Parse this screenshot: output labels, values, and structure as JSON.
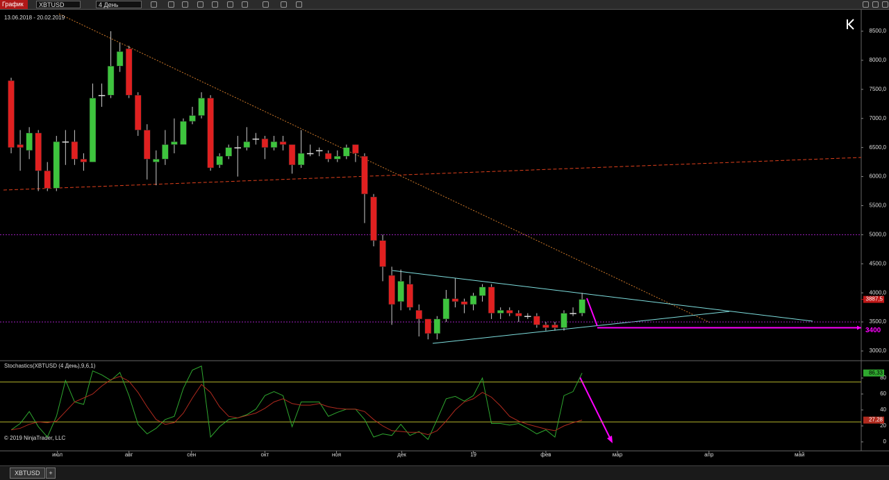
{
  "toolbar": {
    "label": "График",
    "instrument": "XBTUSD",
    "interval": "4 День"
  },
  "tabs": [
    "XBTUSD"
  ],
  "copyright": "© 2019 NinjaTrader, LLC",
  "chart_data": [
    {
      "type": "candlestick",
      "title": "13.06.2018 - 20.02.2019",
      "up_color": "#3ec43e",
      "down_color": "#e02020",
      "open": [
        7650,
        6550,
        6450,
        6750,
        6100,
        5800,
        6600,
        6600,
        6300,
        6250,
        7400,
        7400,
        7900,
        8200,
        7400,
        6800,
        6250,
        6300,
        6550,
        6550,
        6950,
        7050,
        7350,
        6200,
        6350,
        6500,
        6500,
        6650,
        6650,
        6500,
        6600,
        6550,
        6200,
        6400,
        6450,
        6400,
        6300,
        6350,
        6550,
        6350,
        5650,
        4900,
        4300,
        3850,
        4150,
        3700,
        3550,
        3300,
        3550,
        3900,
        3850,
        3800,
        3950,
        4100,
        3650,
        3700,
        3650,
        3600,
        3600,
        3450,
        3450,
        3400,
        3650,
        3650
      ],
      "high": [
        7700,
        6800,
        6850,
        6800,
        6250,
        6700,
        6800,
        6800,
        6400,
        7600,
        7600,
        8500,
        8300,
        8250,
        7450,
        6900,
        6450,
        6800,
        7000,
        7000,
        7200,
        7450,
        7400,
        6400,
        6550,
        6700,
        6850,
        6750,
        6700,
        6700,
        6700,
        6550,
        6800,
        6550,
        6500,
        6450,
        6450,
        6550,
        6550,
        6400,
        5700,
        5000,
        4450,
        4400,
        4300,
        3800,
        3550,
        3600,
        4050,
        4250,
        3900,
        4000,
        4150,
        4150,
        3750,
        3750,
        3700,
        3650,
        3650,
        3500,
        3500,
        3700,
        3750,
        4000
      ],
      "low": [
        6400,
        6100,
        6300,
        5750,
        5750,
        5750,
        6200,
        6200,
        6100,
        6250,
        7200,
        7350,
        7800,
        7350,
        6700,
        5950,
        5850,
        6200,
        6400,
        6550,
        6900,
        7000,
        6100,
        6150,
        6300,
        6000,
        6450,
        6550,
        6300,
        6450,
        6450,
        6050,
        6150,
        6350,
        6350,
        6250,
        6250,
        6300,
        6250,
        5200,
        4800,
        4200,
        3450,
        3700,
        3700,
        3250,
        3200,
        3200,
        3500,
        3750,
        3650,
        3700,
        3850,
        3550,
        3550,
        3600,
        3500,
        3550,
        3400,
        3350,
        3350,
        3350,
        3600,
        3600
      ],
      "close": [
        6500,
        6500,
        6750,
        6100,
        5800,
        6600,
        6600,
        6300,
        6250,
        7350,
        7400,
        7900,
        8150,
        7400,
        6800,
        6300,
        6300,
        6550,
        6600,
        6950,
        7050,
        7350,
        6150,
        6350,
        6500,
        6500,
        6600,
        6650,
        6500,
        6600,
        6550,
        6200,
        6400,
        6400,
        6450,
        6300,
        6350,
        6500,
        6400,
        5700,
        4900,
        4450,
        3800,
        4200,
        3750,
        3550,
        3300,
        3550,
        3900,
        3850,
        3800,
        3950,
        4100,
        3650,
        3700,
        3650,
        3600,
        3600,
        3450,
        3400,
        3400,
        3650,
        3650,
        3887.5
      ],
      "last_label": "3887,5",
      "last_color": "#c01818",
      "ylim": [
        2833,
        8870
      ],
      "yticks": [
        {
          "value": 3000,
          "label": "3000,0"
        },
        {
          "value": 3500,
          "label": "3500,0"
        },
        {
          "value": 4000,
          "label": "4000,0"
        },
        {
          "value": 4500,
          "label": "4500,0"
        },
        {
          "value": 5000,
          "label": "5000,0"
        },
        {
          "value": 5500,
          "label": "5500,0"
        },
        {
          "value": 6000,
          "label": "6000,0"
        },
        {
          "value": 6500,
          "label": "6500,0"
        },
        {
          "value": 7000,
          "label": "7000,0"
        },
        {
          "value": 7500,
          "label": "7500,0"
        },
        {
          "value": 8000,
          "label": "8000,0"
        },
        {
          "value": 8500,
          "label": "8500,0"
        }
      ],
      "hlines": [
        5000,
        3500
      ],
      "hline_color": "#a020c0",
      "annotations": [
        {
          "value": 3400,
          "label": "3400",
          "color": "#ff00ff"
        }
      ],
      "xlim": [
        -1.23,
        93.8
      ],
      "xticks": [
        {
          "value": 5.1,
          "label": "июл"
        },
        {
          "value": 13.0,
          "label": "авг"
        },
        {
          "value": 19.9,
          "label": "сен"
        },
        {
          "value": 28.0,
          "label": "окт"
        },
        {
          "value": 35.9,
          "label": "ноя"
        },
        {
          "value": 43.1,
          "label": "дек"
        },
        {
          "value": 51.0,
          "label": "19"
        },
        {
          "value": 59.0,
          "label": "фев"
        },
        {
          "value": 66.9,
          "label": "мар"
        },
        {
          "value": 77.0,
          "label": "апр"
        },
        {
          "value": 87.0,
          "label": "май"
        }
      ]
    },
    {
      "type": "line",
      "title": "Stochastics(XBTUSD (4 День),9,6,1)",
      "series": [
        {
          "color": "#2fa82f",
          "last_label": "86,33",
          "values": [
            15,
            23,
            38,
            19,
            6,
            32,
            77,
            50,
            47,
            89,
            84,
            77,
            87,
            58,
            22,
            10,
            17,
            28,
            32,
            67,
            90,
            95,
            6,
            19,
            28,
            30,
            34,
            41,
            58,
            63,
            58,
            19,
            50,
            50,
            50,
            32,
            37,
            41,
            41,
            28,
            6,
            10,
            8,
            22,
            8,
            13,
            3,
            28,
            54,
            57,
            51,
            58,
            80,
            23,
            23,
            21,
            23,
            17,
            10,
            15,
            6,
            58,
            63,
            86.33
          ]
        },
        {
          "color": "#b02a1e",
          "last_label": "27,28",
          "values": [
            15,
            17,
            22,
            25,
            24,
            26,
            38,
            50,
            55,
            60,
            70,
            78,
            82,
            76,
            62,
            44,
            28,
            22,
            24,
            36,
            55,
            72,
            62,
            44,
            32,
            30,
            33,
            36,
            42,
            50,
            54,
            48,
            46,
            46,
            48,
            44,
            42,
            41,
            41,
            38,
            28,
            20,
            14,
            13,
            12,
            12,
            9,
            14,
            26,
            40,
            50,
            54,
            62,
            56,
            45,
            32,
            26,
            22,
            19,
            16,
            14,
            20,
            24,
            27.28
          ]
        }
      ],
      "ylim": [
        -11.3,
        100
      ],
      "yticks": [
        0,
        20,
        40,
        60,
        80
      ],
      "hlines": [
        75,
        25
      ],
      "hline_color": "#b5b52a"
    }
  ]
}
